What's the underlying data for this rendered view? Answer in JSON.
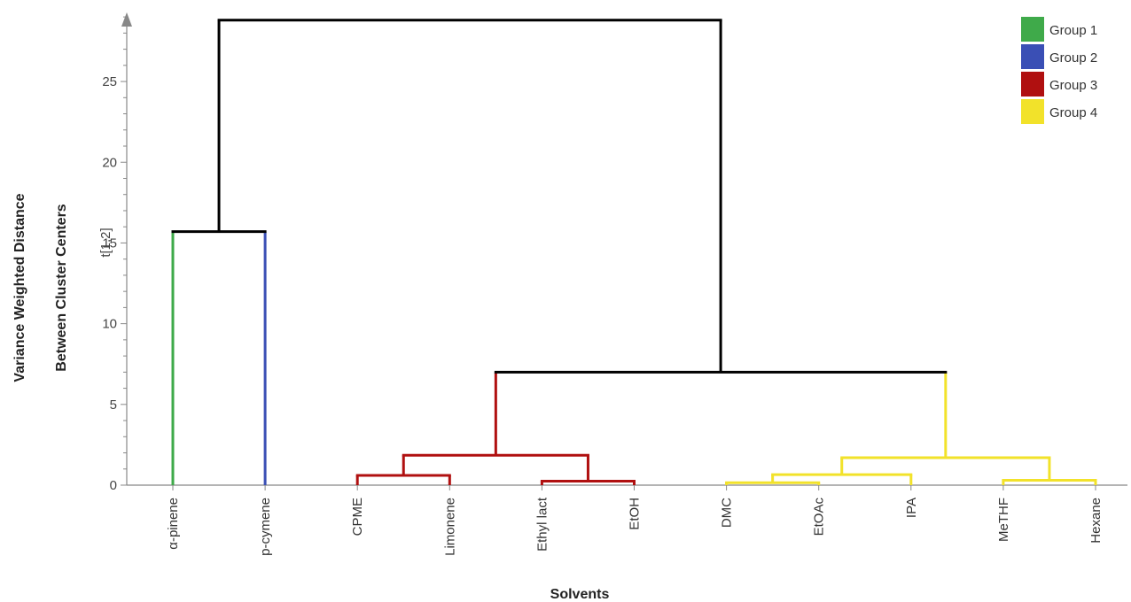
{
  "chart_data": {
    "type": "dendrogram",
    "ylabel_line1": "Variance Weighted Distance",
    "ylabel_line2": "Between Cluster Centers",
    "ylabel_sub": "t[1,2]",
    "xlabel": "Solvents",
    "ylim": [
      0,
      29.5
    ],
    "yticks": [
      0,
      5,
      10,
      15,
      20,
      25
    ],
    "leaves": [
      "α-pinene",
      "p-cymene",
      "CPME",
      "Limonene",
      "Ethyl lact",
      "EtOH",
      "DMC",
      "EtOAc",
      "IPA",
      "MeTHF",
      "Hexane"
    ],
    "legend": [
      {
        "label": "Group 1",
        "color": "#3faa4a"
      },
      {
        "label": "Group 2",
        "color": "#3a4fb5"
      },
      {
        "label": "Group 3",
        "color": "#b01010"
      },
      {
        "label": "Group 4",
        "color": "#f2e22a"
      }
    ],
    "root_color": "#000000",
    "merges": [
      {
        "id": "n1",
        "left": "leaf:0",
        "right": "leaf:1",
        "height": 15.7,
        "color": "#000000"
      },
      {
        "id": "n3a",
        "left": "leaf:2",
        "right": "leaf:3",
        "height": 0.6,
        "color": "#b01010"
      },
      {
        "id": "n3b",
        "left": "leaf:4",
        "right": "leaf:5",
        "height": 0.25,
        "color": "#b01010"
      },
      {
        "id": "n3",
        "left": "n3a",
        "right": "n3b",
        "height": 1.85,
        "color": "#b01010"
      },
      {
        "id": "n4a",
        "left": "leaf:6",
        "right": "leaf:7",
        "height": 0.15,
        "color": "#f2e22a"
      },
      {
        "id": "n4b",
        "left": "n4a",
        "right": "leaf:8",
        "height": 0.65,
        "color": "#f2e22a"
      },
      {
        "id": "n4c",
        "left": "leaf:9",
        "right": "leaf:10",
        "height": 0.3,
        "color": "#f2e22a"
      },
      {
        "id": "n4",
        "left": "n4b",
        "right": "n4c",
        "height": 1.7,
        "color": "#f2e22a"
      },
      {
        "id": "n34",
        "left": "n3",
        "right": "n4",
        "height": 7.0,
        "color": "#000000"
      },
      {
        "id": "root",
        "left": "n1",
        "right": "n34",
        "height": 28.8,
        "color": "#000000"
      }
    ],
    "leaf_colors": [
      "#3faa4a",
      "#3a4fb5",
      "#b01010",
      "#b01010",
      "#b01010",
      "#b01010",
      "#f2e22a",
      "#f2e22a",
      "#f2e22a",
      "#f2e22a",
      "#f2e22a"
    ]
  }
}
